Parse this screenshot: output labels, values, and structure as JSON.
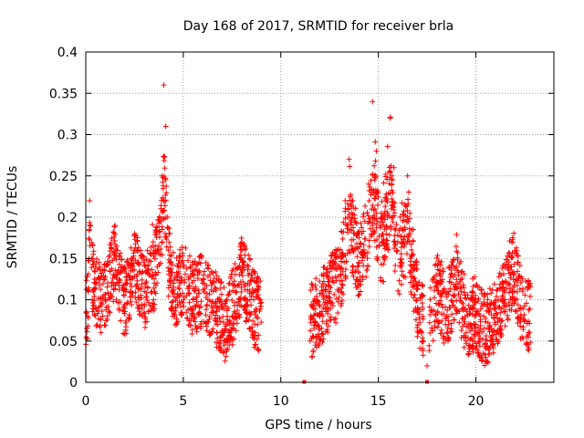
{
  "chart_data": {
    "type": "scatter",
    "title": "Day 168 of 2017, SRMTID for receiver brla",
    "xlabel": "GPS time / hours",
    "ylabel": "SRMTID / TECUs",
    "xlim": [
      0,
      24
    ],
    "ylim": [
      0,
      0.4
    ],
    "xticks": [
      0,
      5,
      10,
      15,
      20
    ],
    "yticks": [
      0,
      0.05,
      0.1,
      0.15,
      0.2,
      0.25,
      0.3,
      0.35,
      0.4
    ],
    "xtick_labels": [
      "0",
      "5",
      "10",
      "15",
      "20"
    ],
    "ytick_labels": [
      "0",
      "0.05",
      "0.1",
      "0.15",
      "0.2",
      "0.25",
      "0.3",
      "0.35",
      "0.4"
    ],
    "grid": true,
    "marker": "+",
    "color": "#ff0000",
    "series": [
      {
        "name": "SRMTID",
        "segments": [
          {
            "t_start": 0.0,
            "t_end": 9.0
          },
          {
            "t_start": 11.5,
            "t_end": 17.3
          },
          {
            "t_start": 17.6,
            "t_end": 22.8
          }
        ],
        "sample_points": [
          [
            0.1,
            0.08
          ],
          [
            0.2,
            0.22
          ],
          [
            0.3,
            0.15
          ],
          [
            0.5,
            0.12
          ],
          [
            1.0,
            0.1
          ],
          [
            1.5,
            0.19
          ],
          [
            2.0,
            0.09
          ],
          [
            2.5,
            0.18
          ],
          [
            3.0,
            0.11
          ],
          [
            3.5,
            0.16
          ],
          [
            3.9,
            0.25
          ],
          [
            4.0,
            0.36
          ],
          [
            4.1,
            0.31
          ],
          [
            4.2,
            0.2
          ],
          [
            4.5,
            0.12
          ],
          [
            5.0,
            0.14
          ],
          [
            5.5,
            0.1
          ],
          [
            6.0,
            0.12
          ],
          [
            6.5,
            0.09
          ],
          [
            7.0,
            0.06
          ],
          [
            7.2,
            0.04
          ],
          [
            7.5,
            0.08
          ],
          [
            8.0,
            0.16
          ],
          [
            8.3,
            0.12
          ],
          [
            8.8,
            0.07
          ],
          [
            11.5,
            0.05
          ],
          [
            12.0,
            0.08
          ],
          [
            12.5,
            0.11
          ],
          [
            13.0,
            0.14
          ],
          [
            13.3,
            0.22
          ],
          [
            13.5,
            0.27
          ],
          [
            14.0,
            0.18
          ],
          [
            14.5,
            0.24
          ],
          [
            14.7,
            0.34
          ],
          [
            14.9,
            0.28
          ],
          [
            15.2,
            0.2
          ],
          [
            15.6,
            0.32
          ],
          [
            15.8,
            0.26
          ],
          [
            16.0,
            0.17
          ],
          [
            16.5,
            0.25
          ],
          [
            17.0,
            0.09
          ],
          [
            17.3,
            0.05
          ],
          [
            17.5,
            0.02
          ],
          [
            18.0,
            0.12
          ],
          [
            18.5,
            0.08
          ],
          [
            19.0,
            0.14
          ],
          [
            19.5,
            0.06
          ],
          [
            20.0,
            0.07
          ],
          [
            20.5,
            0.03
          ],
          [
            21.0,
            0.07
          ],
          [
            21.5,
            0.1
          ],
          [
            21.9,
            0.17
          ],
          [
            22.3,
            0.09
          ],
          [
            22.7,
            0.06
          ]
        ],
        "zero_markers": [
          11.2,
          17.5
        ]
      }
    ]
  }
}
